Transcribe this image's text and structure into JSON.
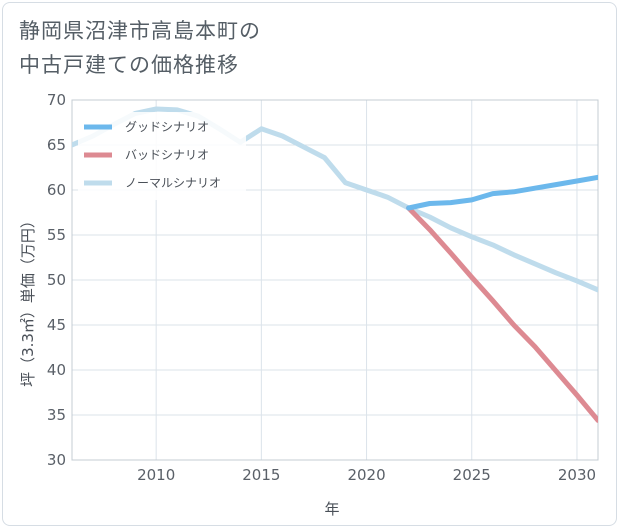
{
  "title_lines": [
    "静岡県沼津市高島本町の",
    "中古戸建ての価格推移"
  ],
  "chart_data": {
    "type": "line",
    "title": "静岡県沼津市高島本町の中古戸建ての価格推移",
    "xlabel": "年",
    "ylabel": "坪（3.3㎡）単価（万円）",
    "xlim": [
      2006,
      2031
    ],
    "ylim": [
      30,
      70
    ],
    "xticks": [
      2010,
      2015,
      2020,
      2025,
      2030
    ],
    "yticks": [
      30,
      35,
      40,
      45,
      50,
      55,
      60,
      65,
      70
    ],
    "grid": true,
    "legend_position": "top-left",
    "series": [
      {
        "name": "グッドシナリオ",
        "color": "#6cb8ec",
        "x": [
          2022,
          2023,
          2024,
          2025,
          2026,
          2027,
          2028,
          2029,
          2030,
          2031
        ],
        "y": [
          58.0,
          58.5,
          58.6,
          58.9,
          59.6,
          59.8,
          60.2,
          60.6,
          61.0,
          61.4
        ]
      },
      {
        "name": "バッドシナリオ",
        "color": "#dd8a92",
        "x": [
          2022,
          2023,
          2024,
          2025,
          2026,
          2027,
          2028,
          2029,
          2030,
          2031
        ],
        "y": [
          58.0,
          55.6,
          53.0,
          50.3,
          47.7,
          45.0,
          42.6,
          39.9,
          37.2,
          34.4
        ]
      },
      {
        "name": "ノーマルシナリオ",
        "color": "#bfdcec",
        "x": [
          2006,
          2007,
          2008,
          2009,
          2010,
          2011,
          2012,
          2013,
          2014,
          2015,
          2016,
          2017,
          2018,
          2019,
          2020,
          2021,
          2022,
          2023,
          2024,
          2025,
          2026,
          2027,
          2028,
          2029,
          2030,
          2031
        ],
        "y": [
          65.0,
          66.0,
          67.3,
          68.5,
          69.0,
          68.9,
          68.2,
          66.8,
          65.3,
          66.8,
          66.0,
          64.8,
          63.6,
          60.8,
          60.0,
          59.2,
          58.0,
          57.0,
          55.8,
          54.8,
          53.9,
          52.8,
          51.8,
          50.8,
          49.9,
          48.9
        ]
      }
    ]
  }
}
